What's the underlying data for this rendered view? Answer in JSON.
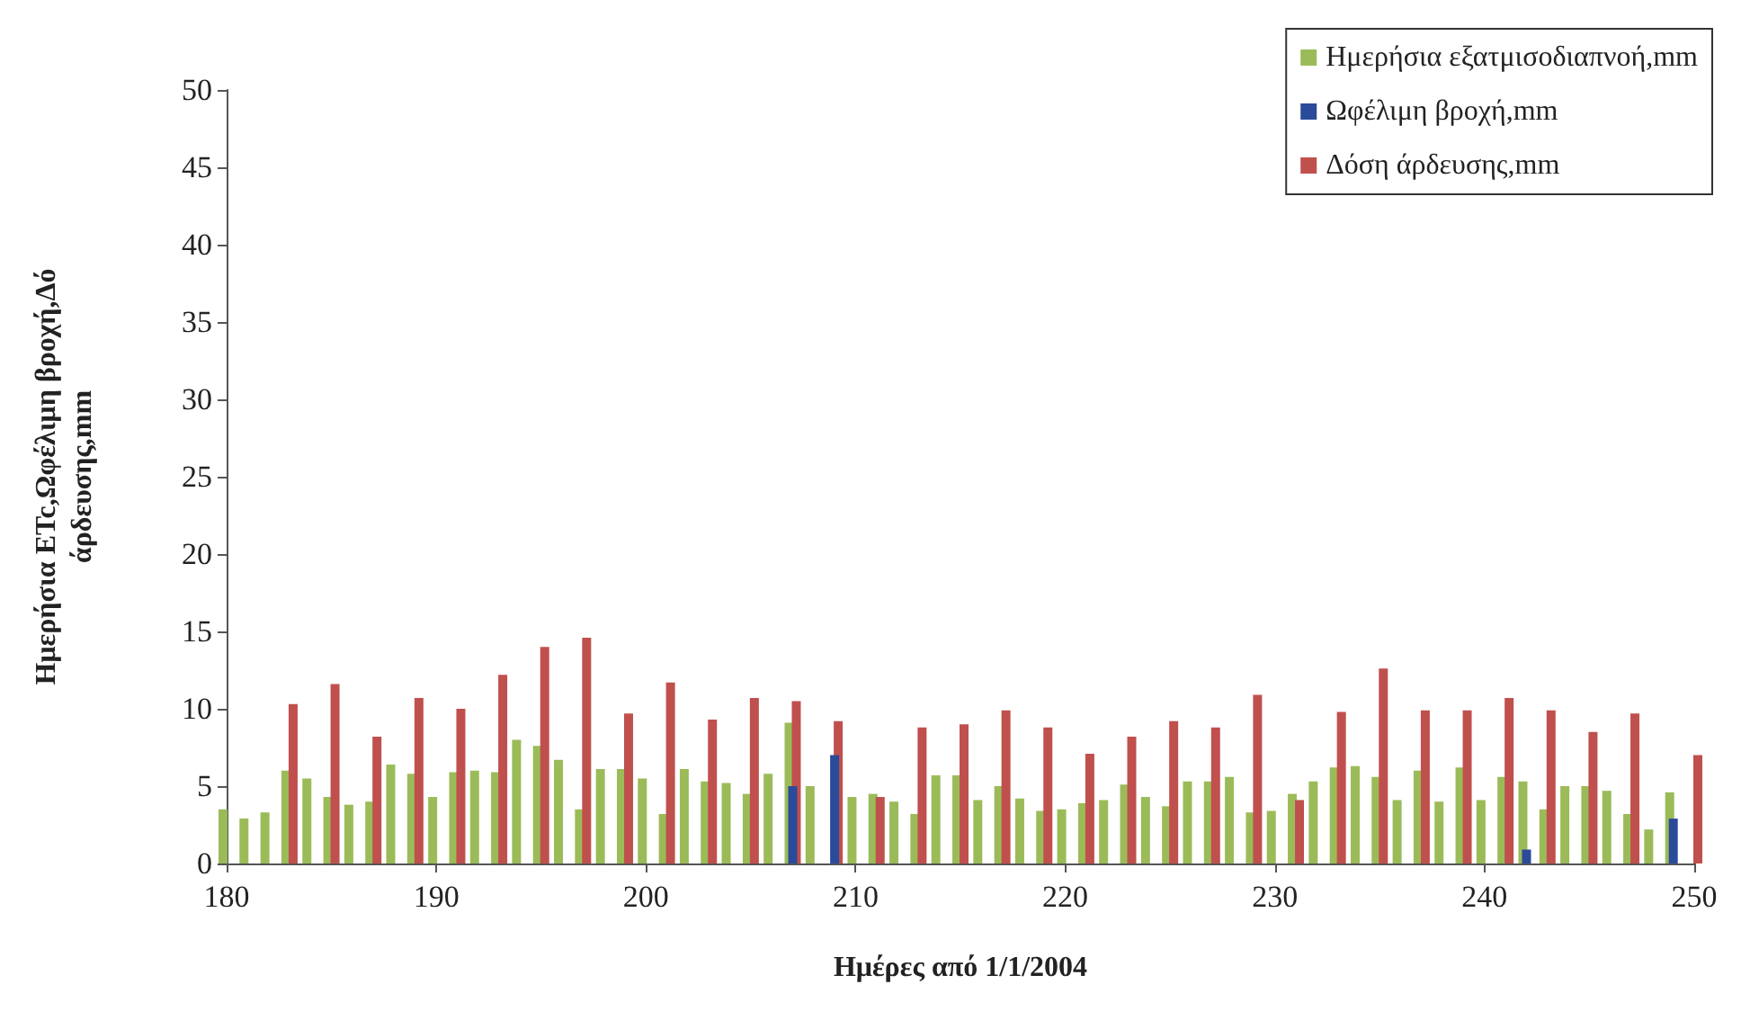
{
  "chart_data": {
    "type": "bar",
    "xlabel": "Ημέρες από 1/1/2004",
    "ylabel": "Ημερήσια ETc,Ωφέλιμη βροχή,Δό\nάρδευσης,mm",
    "x": [
      180,
      181,
      182,
      183,
      184,
      185,
      186,
      187,
      188,
      189,
      190,
      191,
      192,
      193,
      194,
      195,
      196,
      197,
      198,
      199,
      200,
      201,
      202,
      203,
      204,
      205,
      206,
      207,
      208,
      209,
      210,
      211,
      212,
      213,
      214,
      215,
      216,
      217,
      218,
      219,
      220,
      221,
      222,
      223,
      224,
      225,
      226,
      227,
      228,
      229,
      230,
      231,
      232,
      233,
      234,
      235,
      236,
      237,
      238,
      239,
      240,
      241,
      242,
      243,
      244,
      245,
      246,
      247,
      248,
      249,
      250
    ],
    "series": [
      {
        "name": "Ημερήσια εξατμισοδιαπνοή,mm",
        "color": "#9bbb59",
        "values": [
          3.5,
          2.9,
          3.3,
          6.0,
          5.5,
          4.3,
          3.8,
          4.0,
          6.4,
          5.8,
          4.3,
          5.9,
          6.0,
          5.9,
          8.0,
          7.6,
          6.7,
          3.5,
          6.1,
          6.1,
          5.5,
          3.2,
          6.1,
          5.3,
          5.2,
          4.5,
          5.8,
          9.1,
          5.0,
          null,
          4.3,
          4.5,
          4.0,
          3.2,
          5.7,
          5.7,
          4.1,
          5.0,
          4.2,
          3.4,
          3.5,
          3.9,
          4.1,
          5.1,
          4.3,
          3.7,
          5.3,
          5.3,
          5.6,
          3.3,
          3.4,
          4.5,
          5.3,
          6.2,
          6.3,
          5.6,
          4.1,
          6.0,
          4.0,
          6.2,
          4.1,
          5.6,
          5.3,
          3.5,
          5.0,
          5.0,
          4.7,
          3.2,
          2.2,
          4.6,
          null
        ]
      },
      {
        "name": "Ωφέλιμη βροχή,mm",
        "color": "#2a4a9a",
        "values": [
          null,
          null,
          null,
          null,
          null,
          null,
          null,
          null,
          null,
          null,
          null,
          null,
          null,
          null,
          null,
          null,
          null,
          null,
          null,
          null,
          null,
          null,
          null,
          null,
          null,
          null,
          null,
          5.0,
          null,
          7.0,
          null,
          null,
          null,
          null,
          null,
          null,
          null,
          null,
          null,
          null,
          null,
          null,
          null,
          null,
          null,
          null,
          null,
          null,
          null,
          null,
          null,
          null,
          null,
          null,
          null,
          null,
          null,
          null,
          null,
          null,
          null,
          null,
          0.9,
          null,
          null,
          null,
          null,
          null,
          null,
          2.9,
          null
        ]
      },
      {
        "name": "Δόση άρδευσης,mm",
        "color": "#c0504d",
        "values": [
          null,
          null,
          null,
          10.3,
          null,
          11.6,
          null,
          8.2,
          null,
          10.7,
          null,
          10.0,
          null,
          12.2,
          null,
          14.0,
          null,
          14.6,
          null,
          9.7,
          null,
          11.7,
          null,
          9.3,
          null,
          10.7,
          null,
          10.5,
          null,
          9.2,
          null,
          4.3,
          null,
          8.8,
          null,
          9.0,
          null,
          9.9,
          null,
          8.8,
          null,
          7.1,
          null,
          8.2,
          null,
          9.2,
          null,
          8.8,
          null,
          10.9,
          null,
          4.1,
          null,
          9.8,
          null,
          12.6,
          null,
          9.9,
          null,
          9.9,
          null,
          10.7,
          null,
          9.9,
          null,
          8.5,
          null,
          9.7,
          null,
          null,
          7.0
        ]
      }
    ],
    "xlim": [
      180,
      250
    ],
    "xticks": [
      180,
      190,
      200,
      210,
      220,
      230,
      240,
      250
    ],
    "ylim": [
      0,
      50
    ],
    "yticks": [
      0,
      5,
      10,
      15,
      20,
      25,
      30,
      35,
      40,
      45,
      50
    ],
    "grid": false,
    "legend": "top right"
  }
}
